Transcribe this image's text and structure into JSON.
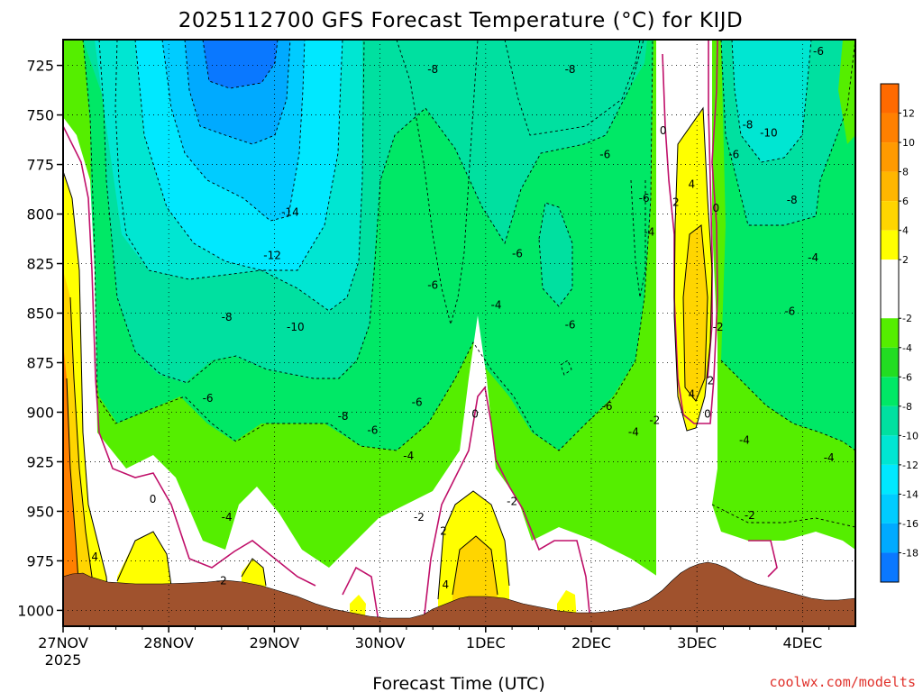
{
  "chart_data": {
    "type": "heatmap",
    "title": "2025112700 GFS Forecast Temperature (°C) for KIJD",
    "xlabel": "Forecast Time (UTC)",
    "ylabel": "",
    "credit": "coolwx.com/modelts",
    "x_ticks": [
      "27NOV",
      "28NOV",
      "29NOV",
      "30NOV",
      "1DEC",
      "2DEC",
      "3DEC",
      "4DEC"
    ],
    "x_year_label": "2025",
    "x_range_days": [
      0,
      7.5
    ],
    "y_ticks": [
      725,
      750,
      775,
      800,
      825,
      850,
      875,
      900,
      925,
      950,
      975,
      1000
    ],
    "y_range_hpa": [
      712,
      1008
    ],
    "grid": true,
    "colorbar": {
      "labels": [
        "12",
        "10",
        "8",
        "6",
        "4",
        "2",
        "-2",
        "-4",
        "-6",
        "-8",
        "-10",
        "-12",
        "-14",
        "-16",
        "-18"
      ],
      "bands": [
        {
          "range": [
            12,
            14
          ],
          "color": "#ff6a00"
        },
        {
          "range": [
            10,
            12
          ],
          "color": "#ff8000"
        },
        {
          "range": [
            8,
            10
          ],
          "color": "#ff9a00"
        },
        {
          "range": [
            6,
            8
          ],
          "color": "#ffb600"
        },
        {
          "range": [
            4,
            6
          ],
          "color": "#ffd500"
        },
        {
          "range": [
            2,
            4
          ],
          "color": "#ffff00"
        },
        {
          "range": [
            -2,
            2
          ],
          "color": "#ffffff"
        },
        {
          "range": [
            -4,
            -2
          ],
          "color": "#55ee00"
        },
        {
          "range": [
            -6,
            -4
          ],
          "color": "#22dd22"
        },
        {
          "range": [
            -8,
            -6
          ],
          "color": "#00e866"
        },
        {
          "range": [
            -10,
            -8
          ],
          "color": "#00e0a0"
        },
        {
          "range": [
            -12,
            -10
          ],
          "color": "#00e6d2"
        },
        {
          "range": [
            -14,
            -12
          ],
          "color": "#00e8ff"
        },
        {
          "range": [
            -16,
            -14
          ],
          "color": "#00ccff"
        },
        {
          "range": [
            -18,
            -16
          ],
          "color": "#00aaff"
        },
        {
          "range": [
            -20,
            -18
          ],
          "color": "#0a78ff"
        }
      ]
    },
    "contour_labels": [
      {
        "text": "-8",
        "day": 3.5,
        "p": 727
      },
      {
        "text": "-8",
        "day": 4.8,
        "p": 727
      },
      {
        "text": "-6",
        "day": 7.15,
        "p": 718
      },
      {
        "text": "0",
        "day": 5.68,
        "p": 758
      },
      {
        "text": "-8",
        "day": 6.48,
        "p": 755
      },
      {
        "text": "-10",
        "day": 6.68,
        "p": 759
      },
      {
        "text": "-6",
        "day": 5.13,
        "p": 770
      },
      {
        "text": "-6",
        "day": 6.35,
        "p": 770
      },
      {
        "text": "4",
        "day": 5.95,
        "p": 785
      },
      {
        "text": "2",
        "day": 5.8,
        "p": 794
      },
      {
        "text": "0",
        "day": 6.18,
        "p": 797
      },
      {
        "text": "-6",
        "day": 5.5,
        "p": 792
      },
      {
        "text": "-8",
        "day": 6.9,
        "p": 793
      },
      {
        "text": "-14",
        "day": 2.15,
        "p": 799
      },
      {
        "text": "-4",
        "day": 5.55,
        "p": 809
      },
      {
        "text": "-4",
        "day": 7.1,
        "p": 822
      },
      {
        "text": "-12",
        "day": 1.98,
        "p": 821
      },
      {
        "text": "-6",
        "day": 4.3,
        "p": 820
      },
      {
        "text": "-6",
        "day": 3.5,
        "p": 836
      },
      {
        "text": "-4",
        "day": 4.1,
        "p": 846
      },
      {
        "text": "-8",
        "day": 1.55,
        "p": 852
      },
      {
        "text": "-6",
        "day": 6.88,
        "p": 849
      },
      {
        "text": "-10",
        "day": 2.2,
        "p": 857
      },
      {
        "text": "-6",
        "day": 4.8,
        "p": 856
      },
      {
        "text": "-2",
        "day": 6.2,
        "p": 857
      },
      {
        "text": "4",
        "day": 5.95,
        "p": 891
      },
      {
        "text": "2",
        "day": 6.13,
        "p": 884
      },
      {
        "text": "-6",
        "day": 1.37,
        "p": 893
      },
      {
        "text": "-6",
        "day": 3.35,
        "p": 895
      },
      {
        "text": "-8",
        "day": 2.65,
        "p": 902
      },
      {
        "text": "0",
        "day": 3.9,
        "p": 901
      },
      {
        "text": "0",
        "day": 6.1,
        "p": 901
      },
      {
        "text": "-6",
        "day": 5.15,
        "p": 897
      },
      {
        "text": "-2",
        "day": 5.6,
        "p": 904
      },
      {
        "text": "-6",
        "day": 2.93,
        "p": 909
      },
      {
        "text": "-4",
        "day": 5.4,
        "p": 910
      },
      {
        "text": "-4",
        "day": 6.45,
        "p": 914
      },
      {
        "text": "-4",
        "day": 3.27,
        "p": 922
      },
      {
        "text": "-4",
        "day": 7.25,
        "p": 923
      },
      {
        "text": "0",
        "day": 0.85,
        "p": 944
      },
      {
        "text": "-2",
        "day": 4.25,
        "p": 945
      },
      {
        "text": "-4",
        "day": 1.55,
        "p": 953
      },
      {
        "text": "-2",
        "day": 3.37,
        "p": 953
      },
      {
        "text": "-2",
        "day": 6.5,
        "p": 952
      },
      {
        "text": "2",
        "day": 3.6,
        "p": 960
      },
      {
        "text": "4",
        "day": 0.3,
        "p": 973
      },
      {
        "text": "4",
        "day": 3.62,
        "p": 987
      },
      {
        "text": "-2",
        "day": 1.5,
        "p": 985
      }
    ]
  }
}
